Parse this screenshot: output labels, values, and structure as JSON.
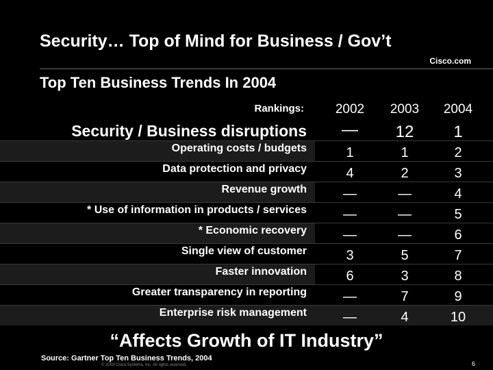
{
  "slide": {
    "title": "Security… Top of Mind for Business / Gov’t",
    "brand": "Cisco.com",
    "section_title": "Top Ten Business Trends In 2004",
    "header_label": "Rankings:",
    "years": [
      "2002",
      "2003",
      "2004"
    ],
    "main_row": {
      "label": "Security  / Business disruptions",
      "values": [
        "—",
        "12",
        "1"
      ]
    },
    "rows": [
      {
        "label": "Operating costs / budgets",
        "values": [
          "1",
          "1",
          "2"
        ]
      },
      {
        "label": "Data protection and privacy",
        "values": [
          "4",
          "2",
          "3"
        ]
      },
      {
        "label": "Revenue growth",
        "values": [
          "—",
          "—",
          "4"
        ]
      },
      {
        "label": "* Use of information in products / services",
        "values": [
          "—",
          "—",
          "5"
        ]
      },
      {
        "label": "* Economic recovery",
        "values": [
          "—",
          "—",
          "6"
        ]
      },
      {
        "label": "Single view of customer",
        "values": [
          "3",
          "5",
          "7"
        ]
      },
      {
        "label": "Faster innovation",
        "values": [
          "6",
          "3",
          "8"
        ]
      },
      {
        "label": "Greater transparency in reporting",
        "values": [
          "—",
          "7",
          "9"
        ]
      },
      {
        "label": "Enterprise risk management",
        "values": [
          "—",
          "4",
          "10"
        ]
      }
    ],
    "quote": "“Affects Growth of IT Industry”",
    "source": "Source: Gartner Top Ten Business Trends, 2004",
    "copyright": "© 2003 Cisco Systems, Inc. All rights reserved.",
    "page_number": "6",
    "colors": {
      "background": "#000000",
      "text": "#ffffff",
      "highlight": "#ffcc00"
    }
  }
}
